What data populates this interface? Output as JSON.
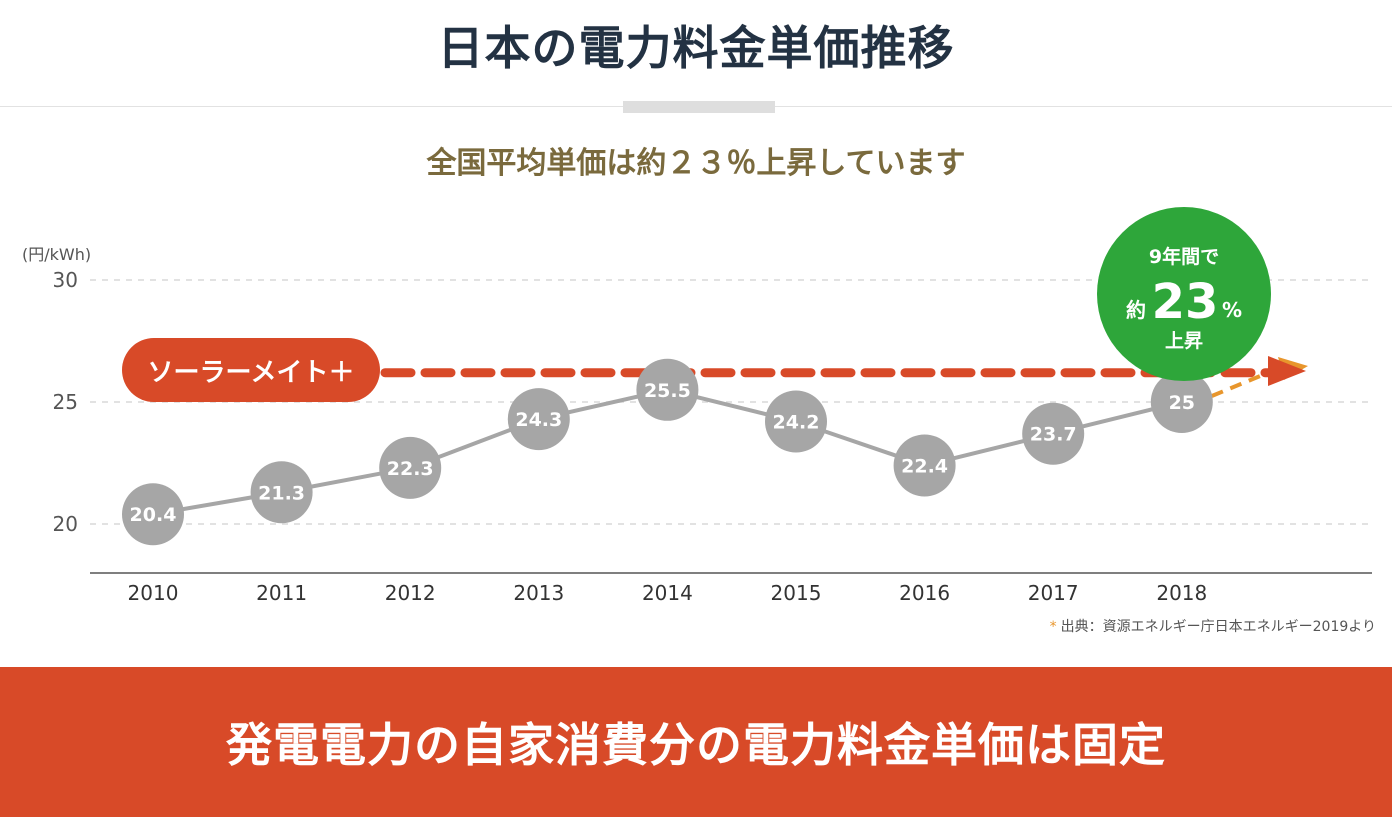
{
  "header": {
    "title": "日本の電力料金単価推移",
    "subtitle": "全国平均単価は約２３％上昇しています"
  },
  "chart_data": {
    "type": "line",
    "ylabel": "(円/kWh)",
    "ylim": [
      18,
      30
    ],
    "yticks": [
      20,
      25,
      30
    ],
    "x": [
      "2010",
      "2011",
      "2012",
      "2013",
      "2014",
      "2015",
      "2016",
      "2017",
      "2018"
    ],
    "series": [
      {
        "values": [
          20.4,
          21.3,
          22.3,
          24.3,
          25.5,
          24.2,
          22.4,
          23.7,
          25
        ],
        "labels": [
          "20.4",
          "21.3",
          "22.3",
          "24.3",
          "25.5",
          "24.2",
          "22.4",
          "23.7",
          "25"
        ],
        "color": "#a6a6a6"
      }
    ],
    "grid": true,
    "annotations": {
      "fixed_label": "ソーラーメイト＋",
      "fixed_level": 26.2,
      "fixed_color": "#d84a28",
      "badge_line1": "9年間で",
      "badge_prefix": "約",
      "badge_number": "23",
      "badge_unit": "%",
      "badge_line3": "上昇",
      "badge_color": "#2ea63a",
      "trend_color": "#e8962c"
    }
  },
  "source": {
    "asterisk": "*",
    "text": "出典：資源エネルギー庁日本エネルギー2019より"
  },
  "footer": {
    "text": "発電電力の自家消費分の電力料金単価は固定",
    "color": "#d84a28"
  }
}
